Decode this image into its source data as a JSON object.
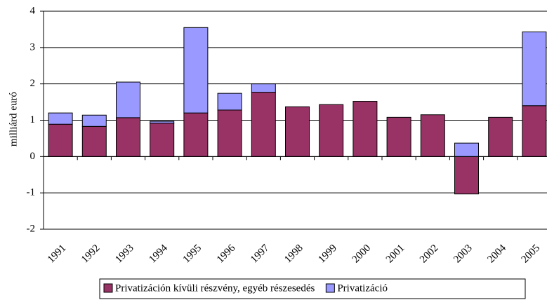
{
  "chart_data": {
    "type": "stacked_bar",
    "y_label": "milliárd euró",
    "categories": [
      "1991",
      "1992",
      "1993",
      "1994",
      "1995",
      "1996",
      "1997",
      "1998",
      "1999",
      "2000",
      "2001",
      "2002",
      "2003",
      "2004",
      "2005"
    ],
    "series": [
      {
        "name": "Privatizáción kívüli részvény, egyéb részesedés",
        "color": "#993366",
        "values": [
          0.89,
          0.83,
          1.07,
          0.92,
          1.2,
          1.28,
          1.77,
          1.37,
          1.43,
          1.52,
          1.08,
          1.15,
          -1.03,
          1.08,
          1.4
        ]
      },
      {
        "name": "Privatizáció",
        "color": "#9999ff",
        "values": [
          0.31,
          0.31,
          0.98,
          0.05,
          2.35,
          0.46,
          0.23,
          0,
          0,
          0,
          0,
          0,
          0.37,
          0,
          2.03
        ]
      }
    ],
    "ylim": [
      -2,
      4
    ],
    "yticks": [
      -2,
      -1,
      0,
      1,
      2,
      3,
      4
    ],
    "grid": true
  }
}
